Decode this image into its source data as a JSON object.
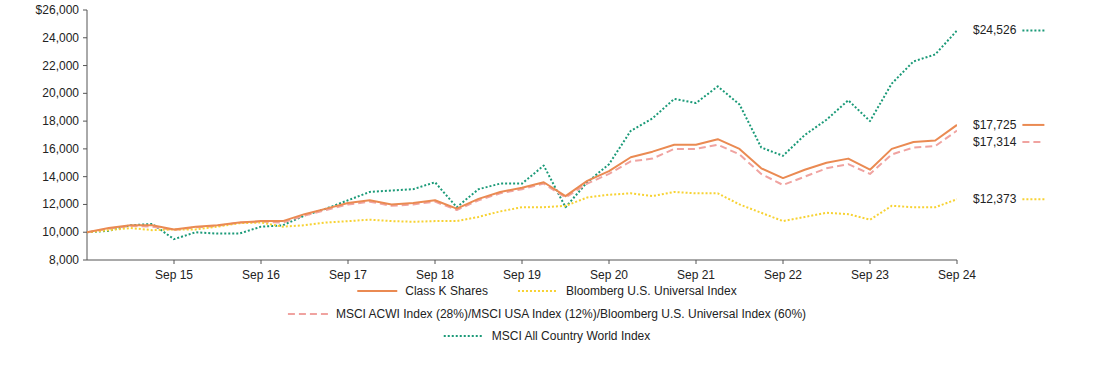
{
  "chart_data": {
    "type": "line",
    "categories": [
      null,
      null,
      null,
      null,
      "Sep 15",
      null,
      null,
      null,
      "Sep 16",
      null,
      null,
      null,
      "Sep 17",
      null,
      null,
      null,
      "Sep 18",
      null,
      null,
      null,
      "Sep 19",
      null,
      null,
      null,
      "Sep 20",
      null,
      null,
      null,
      "Sep 21",
      null,
      null,
      null,
      "Sep 22",
      null,
      null,
      null,
      "Sep 23",
      null,
      null,
      null,
      "Sep 24"
    ],
    "series": [
      {
        "name": "Class K Shares",
        "color": "#ea8a52",
        "line_style": "solid",
        "values": [
          10000,
          10300,
          10500,
          10500,
          10200,
          10400,
          10500,
          10700,
          10800,
          10800,
          11300,
          11700,
          12100,
          12300,
          12000,
          12100,
          12300,
          11700,
          12400,
          12900,
          13200,
          13600,
          12600,
          13700,
          14400,
          15400,
          15800,
          16300,
          16300,
          16700,
          16000,
          14600,
          13900,
          14500,
          15000,
          15300,
          14500,
          16000,
          16500,
          16600,
          17725
        ],
        "value_labels": [
          null,
          null,
          null,
          null,
          null,
          null,
          null,
          null,
          null,
          null,
          null,
          null,
          null,
          null,
          null,
          null,
          null,
          null,
          null,
          null,
          null,
          null,
          null,
          null,
          null,
          null,
          null,
          null,
          null,
          null,
          null,
          null,
          null,
          null,
          null,
          null,
          null,
          null,
          null,
          null,
          "$17,725"
        ]
      },
      {
        "name": "Bloomberg U.S. Universal Index",
        "color": "#f7d233",
        "line_style": "dotted",
        "values": [
          10000,
          10150,
          10300,
          10150,
          10200,
          10200,
          10400,
          10650,
          10700,
          10400,
          10500,
          10700,
          10800,
          10900,
          10800,
          10750,
          10800,
          10800,
          11100,
          11500,
          11800,
          11800,
          11900,
          12500,
          12700,
          12800,
          12600,
          12900,
          12800,
          12800,
          12000,
          11400,
          10800,
          11100,
          11400,
          11300,
          10900,
          11900,
          11800,
          11800,
          12373
        ],
        "value_labels": [
          null,
          null,
          null,
          null,
          null,
          null,
          null,
          null,
          null,
          null,
          null,
          null,
          null,
          null,
          null,
          null,
          null,
          null,
          null,
          null,
          null,
          null,
          null,
          null,
          null,
          null,
          null,
          null,
          null,
          null,
          null,
          null,
          null,
          null,
          null,
          null,
          null,
          null,
          null,
          null,
          "$12,373"
        ]
      },
      {
        "name": "MSCI ACWI Index (28%)/MSCI USA Index (12%)/Bloomberg U.S. Universal Index (60%)",
        "color": "#f0a3a0",
        "line_style": "dashed",
        "values": [
          10000,
          10250,
          10450,
          10400,
          10150,
          10350,
          10450,
          10700,
          10750,
          10700,
          11200,
          11600,
          12000,
          12200,
          11900,
          12000,
          12200,
          11600,
          12300,
          12800,
          13100,
          13500,
          12500,
          13500,
          14200,
          15100,
          15300,
          16000,
          16000,
          16300,
          15600,
          14200,
          13400,
          14000,
          14600,
          14900,
          14200,
          15600,
          16100,
          16200,
          17314
        ],
        "value_labels": [
          null,
          null,
          null,
          null,
          null,
          null,
          null,
          null,
          null,
          null,
          null,
          null,
          null,
          null,
          null,
          null,
          null,
          null,
          null,
          null,
          null,
          null,
          null,
          null,
          null,
          null,
          null,
          null,
          null,
          null,
          null,
          null,
          null,
          null,
          null,
          null,
          null,
          null,
          null,
          null,
          "$17,314"
        ]
      },
      {
        "name": "MSCI All Country World Index",
        "color": "#1b9a78",
        "line_style": "dotted",
        "values": [
          10000,
          10100,
          10500,
          10600,
          9500,
          10000,
          9900,
          9900,
          10400,
          10500,
          11200,
          11700,
          12300,
          12900,
          13000,
          13100,
          13600,
          11800,
          13100,
          13500,
          13500,
          14800,
          11800,
          13600,
          14900,
          17300,
          18200,
          19600,
          19300,
          20500,
          19200,
          16100,
          15500,
          17000,
          18100,
          19500,
          18000,
          20700,
          22300,
          22800,
          24526
        ],
        "value_labels": [
          null,
          null,
          null,
          null,
          null,
          null,
          null,
          null,
          null,
          null,
          null,
          null,
          null,
          null,
          null,
          null,
          null,
          null,
          null,
          null,
          null,
          null,
          null,
          null,
          null,
          null,
          null,
          null,
          null,
          null,
          null,
          null,
          null,
          null,
          null,
          null,
          null,
          null,
          null,
          null,
          "$24,526"
        ]
      }
    ],
    "ylim": [
      8000,
      26000
    ],
    "yticks": [
      {
        "value": 8000,
        "label": "8,000"
      },
      {
        "value": 10000,
        "label": "10,000"
      },
      {
        "value": 12000,
        "label": "12,000"
      },
      {
        "value": 14000,
        "label": "14,000"
      },
      {
        "value": 16000,
        "label": "16,000"
      },
      {
        "value": 18000,
        "label": "18,000"
      },
      {
        "value": 20000,
        "label": "20,000"
      },
      {
        "value": 22000,
        "label": "22,000"
      },
      {
        "value": 24000,
        "label": "24,000"
      },
      {
        "value": 26000,
        "label": "$26,000"
      }
    ],
    "grid": false,
    "legend": "bottom"
  }
}
